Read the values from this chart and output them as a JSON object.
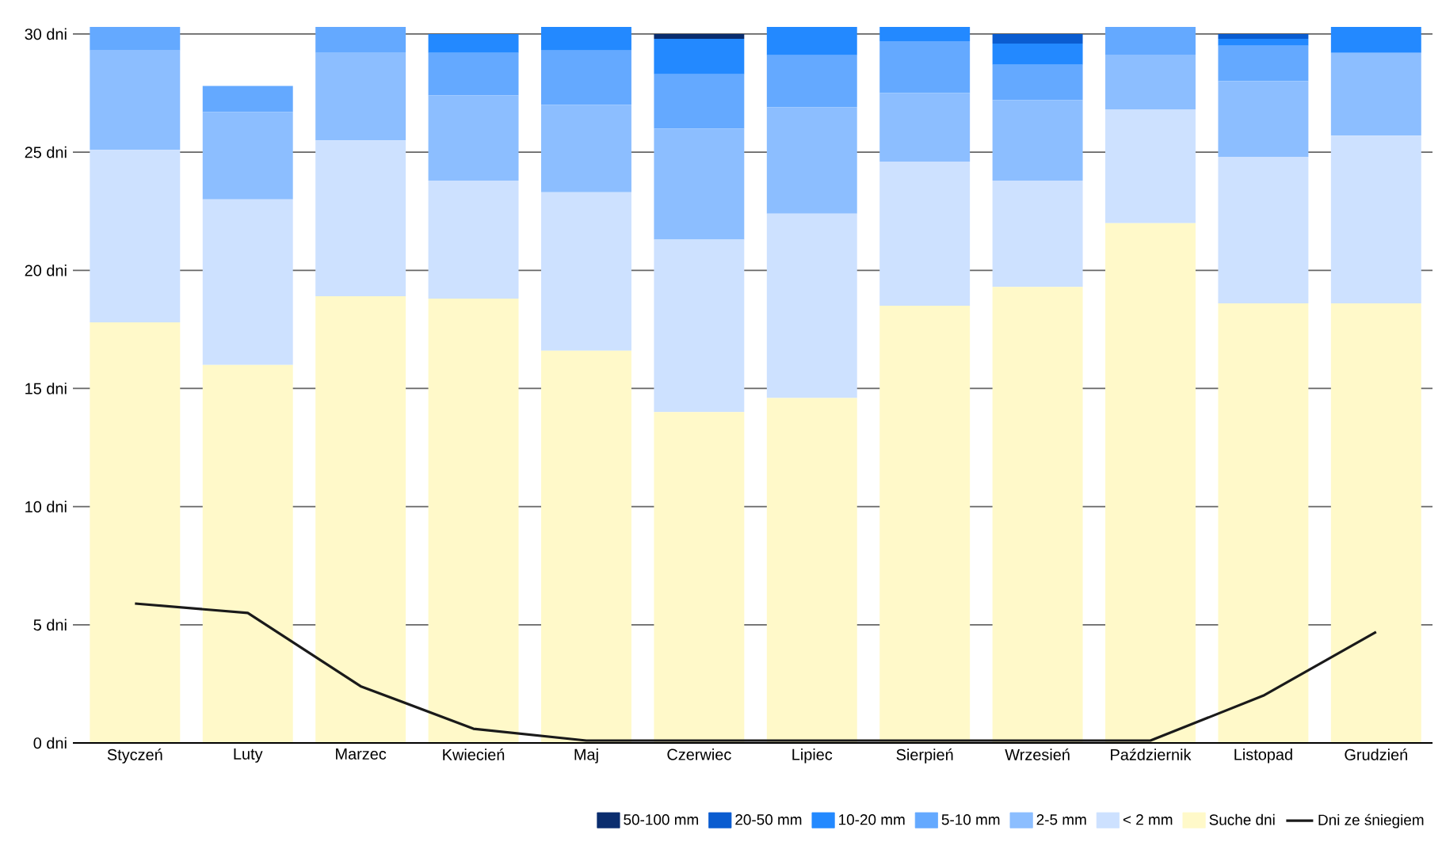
{
  "chart_data": {
    "type": "bar",
    "stacked": true,
    "grid": "y",
    "legend": "bottom right",
    "categories": [
      "Styczeń",
      "Luty",
      "Marzec",
      "Kwiecień",
      "Maj",
      "Czerwiec",
      "Lipiec",
      "Sierpień",
      "Wrzesień",
      "Październik",
      "Listopad",
      "Grudzień"
    ],
    "ylim": [
      0,
      30.3
    ],
    "yticks": [
      {
        "value": 0,
        "label": "0 dni"
      },
      {
        "value": 5,
        "label": "5 dni"
      },
      {
        "value": 10,
        "label": "10 dni"
      },
      {
        "value": 15,
        "label": "15 dni"
      },
      {
        "value": 20,
        "label": "20 dni"
      },
      {
        "value": 25,
        "label": "25 dni"
      },
      {
        "value": 30,
        "label": "30 dni"
      }
    ],
    "series": [
      {
        "name": "Suche dni",
        "color": "#fff9c9",
        "values": [
          17.8,
          16.0,
          18.9,
          18.8,
          16.6,
          14.0,
          14.6,
          18.5,
          19.3,
          22.0,
          18.6,
          18.6
        ]
      },
      {
        "name": "< 2 mm",
        "color": "#cde1ff",
        "values": [
          7.3,
          7.0,
          6.6,
          5.0,
          6.7,
          7.3,
          7.8,
          6.1,
          4.5,
          4.8,
          6.2,
          7.1
        ]
      },
      {
        "name": "2-5 mm",
        "color": "#8cbeff",
        "values": [
          4.2,
          3.7,
          3.7,
          3.6,
          3.7,
          4.7,
          4.5,
          2.9,
          3.4,
          2.3,
          3.2,
          3.5
        ]
      },
      {
        "name": "5-10 mm",
        "color": "#64a9ff",
        "values": [
          1.0,
          1.1,
          1.1,
          1.8,
          2.3,
          2.3,
          2.2,
          2.2,
          1.5,
          1.2,
          1.5,
          0
        ]
      },
      {
        "name": "10-20 mm",
        "color": "#2389ff",
        "values": [
          0,
          0,
          0,
          0.8,
          1.0,
          1.5,
          1.2,
          0.6,
          0.9,
          0,
          0.3,
          1.1
        ]
      },
      {
        "name": "20-50 mm",
        "color": "#0a5cd0",
        "values": [
          0,
          0,
          0,
          0,
          0,
          0,
          0,
          0,
          0.4,
          0,
          0.2,
          0
        ]
      },
      {
        "name": "50-100 mm",
        "color": "#0a2d6e",
        "values": [
          0,
          0,
          0,
          0,
          0,
          0.2,
          0,
          0,
          0,
          0,
          0,
          0
        ]
      },
      {
        "name": "Dni ze śniegiem",
        "type": "line",
        "color": "#1a1a1a",
        "line_style": "solid",
        "values": [
          5.9,
          5.5,
          2.4,
          0.6,
          0.1,
          0.1,
          0.1,
          0.1,
          0.1,
          0.1,
          2.0,
          4.7
        ]
      }
    ]
  }
}
